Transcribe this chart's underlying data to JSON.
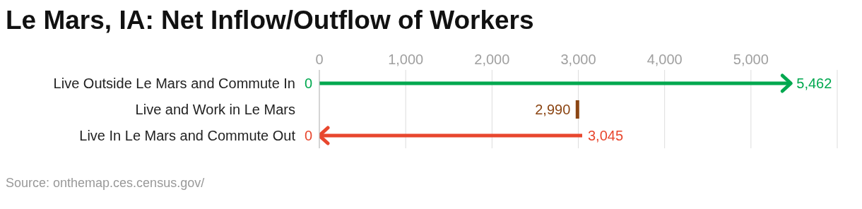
{
  "chart_data": {
    "type": "bar",
    "orientation": "horizontal",
    "title": "Le Mars, IA: Net Inflow/Outflow of Workers",
    "categories": [
      "Live Outside Le Mars and Commute In",
      "Live and Work in Le Mars",
      "Live In Le Mars and Commute Out"
    ],
    "base": [
      0,
      2990,
      3045
    ],
    "values": [
      5462,
      0,
      -3045
    ],
    "colors": [
      "#00a84f",
      "#8b4513",
      "#e8472e"
    ],
    "xlim": [
      0,
      6000
    ],
    "xticks": [
      0,
      {
        "value": 1000,
        "label": "1,000"
      },
      {
        "value": 2000,
        "label": "2,000"
      },
      {
        "value": 3000,
        "label": "3,000"
      },
      {
        "value": 4000,
        "label": "4,000"
      },
      {
        "value": 5000,
        "label": "5,000"
      }
    ],
    "grid": "x",
    "annotations": [
      {
        "text": "0",
        "x": 0,
        "y": "Live Outside Le Mars and Commute In"
      },
      {
        "text": "5,462",
        "x": 5462,
        "y": "Live Outside Le Mars and Commute In"
      },
      {
        "text": "2,990",
        "x": 2990,
        "y": "Live and Work in Le Mars"
      },
      {
        "text": "0",
        "x": 0,
        "y": "Live In Le Mars and Commute Out"
      },
      {
        "text": "3,045",
        "x": 3045,
        "y": "Live In Le Mars and Commute Out"
      },
      "Source: onthemap.ces.census.gov/"
    ]
  }
}
